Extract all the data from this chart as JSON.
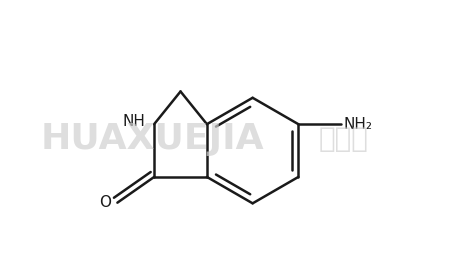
{
  "background_color": "#ffffff",
  "line_color": "#1a1a1a",
  "line_width": 1.8,
  "text_color": "#1a1a1a",
  "nh_label": "NH",
  "o_label": "O",
  "nh2_label": "NH₂",
  "label_fontsize": 11,
  "fig_width": 4.57,
  "fig_height": 2.77,
  "dpi": 100,
  "xlim": [
    -0.55,
    0.75
  ],
  "ylim": [
    -0.45,
    0.45
  ]
}
